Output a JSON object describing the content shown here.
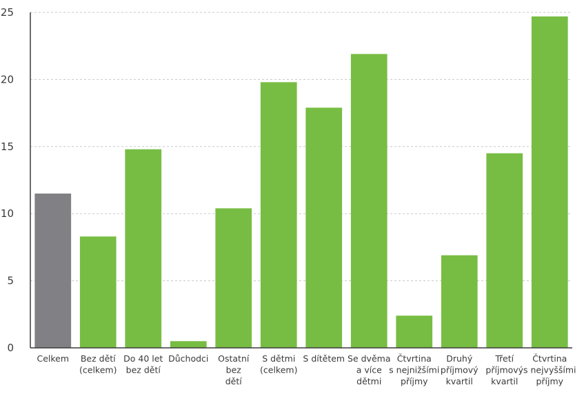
{
  "chart_data": {
    "type": "bar",
    "title": "",
    "xlabel": "",
    "ylabel": "",
    "ylim": [
      0,
      25
    ],
    "yticks": [
      0,
      5,
      10,
      15,
      20,
      25
    ],
    "grid": true,
    "categories": [
      [
        "Celkem"
      ],
      [
        "Bez dětí",
        "(celkem)"
      ],
      [
        "Do 40 let",
        "bez dětí"
      ],
      [
        "Důchodci"
      ],
      [
        "Ostatní",
        "bez",
        "dětí"
      ],
      [
        "S dětmi",
        "(celkem)"
      ],
      [
        "S dítětem"
      ],
      [
        "Se dvěma",
        "a více",
        "dětmi"
      ],
      [
        "Čtvrtina",
        "s nejnižšími",
        "příjmy"
      ],
      [
        "Druhý",
        "příjmový",
        "kvartil"
      ],
      [
        "Třetí",
        "příjmový",
        "kvartil"
      ],
      [
        "Čtvrtina",
        "s nejvyššími",
        "příjmy"
      ]
    ],
    "values": [
      11.5,
      8.3,
      14.8,
      0.5,
      10.4,
      19.8,
      17.9,
      21.9,
      2.4,
      6.9,
      14.5,
      24.7
    ],
    "colors": [
      "#808085",
      "#77bd43",
      "#77bd43",
      "#77bd43",
      "#77bd43",
      "#77bd43",
      "#77bd43",
      "#77bd43",
      "#77bd43",
      "#77bd43",
      "#77bd43",
      "#77bd43"
    ]
  }
}
